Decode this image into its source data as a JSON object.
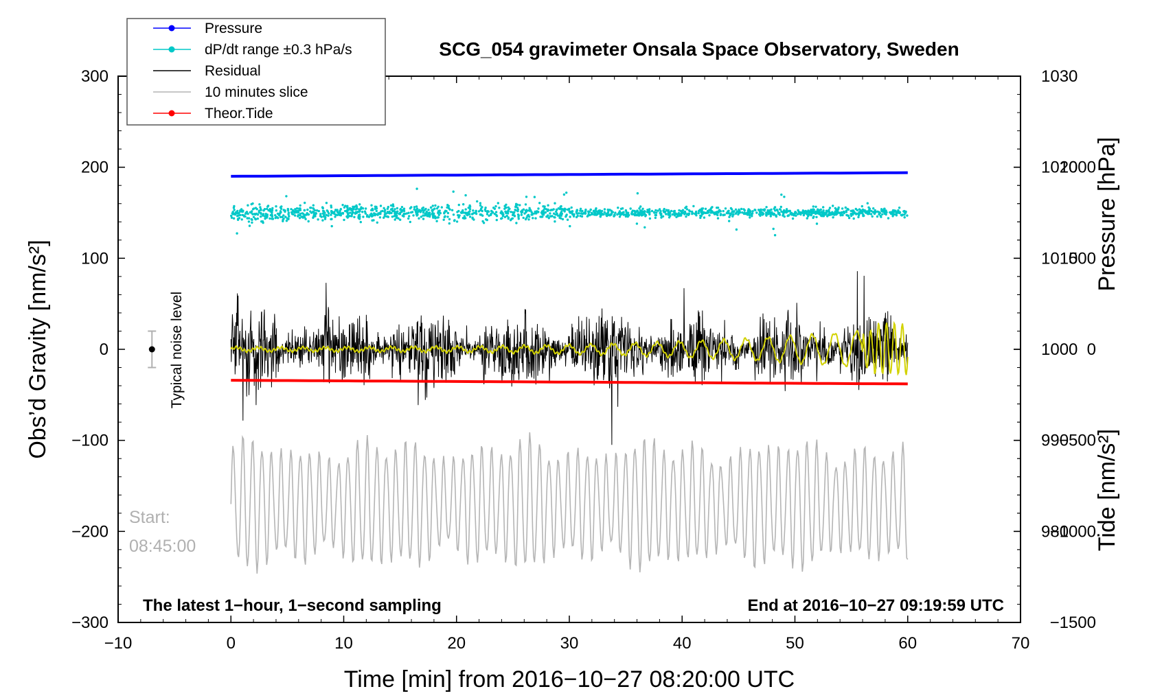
{
  "chart_data": {
    "type": "line",
    "title": "SCG_054 gravimeter Onsala Space Observatory, Sweden",
    "xlabel": "Time [min] from 2016−10−27 08:20:00 UTC",
    "ylabel_left": "Obs’d Gravity [nm/s²]",
    "ylabel_right_pressure": "Pressure [hPa]",
    "ylabel_right_tide": "Tide [nm/s²]",
    "xlim": [
      -10,
      70
    ],
    "ylim": [
      -300,
      300
    ],
    "pressure_axis": {
      "range": [
        970,
        1030
      ],
      "ticks": [
        980,
        990,
        1000,
        1010,
        1020,
        1030
      ]
    },
    "tide_axis": {
      "range": [
        -1500,
        1500
      ],
      "ticks": [
        -1500,
        -1000,
        -500,
        0,
        500,
        1000
      ]
    },
    "x_ticks": [
      "−10",
      "0",
      "10",
      "20",
      "30",
      "40",
      "50",
      "60",
      "70"
    ],
    "x_tick_values": [
      -10,
      0,
      10,
      20,
      30,
      40,
      50,
      60,
      70
    ],
    "y_ticks": [
      "−300",
      "−200",
      "−100",
      "0",
      "100",
      "200",
      "300"
    ],
    "y_tick_values": [
      -300,
      -200,
      -100,
      0,
      100,
      200,
      300
    ],
    "pressure_tick_labels": [
      "980",
      "990",
      "1000",
      "1010",
      "1020",
      "1030"
    ],
    "tide_tick_labels": [
      "−1500",
      "−1000",
      "−500",
      "0",
      "500",
      "1000"
    ],
    "legend": {
      "placement": "top-left",
      "entries": [
        {
          "label": "Pressure",
          "color": "#0000ff",
          "marker": true
        },
        {
          "label": "dP/dt range ±0.3 hPa/s",
          "color": "#00c8c8",
          "marker": true
        },
        {
          "label": "Residual",
          "color": "#000000",
          "marker": false
        },
        {
          "label": "10 minutes slice",
          "color": "#b4b4b4",
          "marker": false
        },
        {
          "label": "Theor.Tide",
          "color": "#ff0000",
          "marker": true
        }
      ]
    },
    "series": [
      {
        "name": "Pressure",
        "color": "#0000ff",
        "axis": "pressure",
        "start_value": 1019.0,
        "end_value": 1019.4,
        "x_range": [
          0,
          60
        ]
      },
      {
        "name": "dP/dt range ±0.3 hPa/s",
        "color": "#00c8c8",
        "axis": "left",
        "center": 150,
        "spread": 12,
        "x_range": [
          0,
          60
        ]
      },
      {
        "name": "Residual",
        "color": "#000000",
        "axis": "left",
        "center": 0,
        "typical_amplitude": 45,
        "max_amplitude": 105,
        "x_range": [
          0,
          60
        ]
      },
      {
        "name": "10 minutes slice",
        "color": "#b4b4b4",
        "axis": "left",
        "center": -170,
        "typical_amplitude": 60,
        "max_amplitude": 85,
        "x_range": [
          0,
          60
        ]
      },
      {
        "name": "Theor.Tide",
        "color": "#ff0000",
        "axis": "tide",
        "start_value": -170,
        "end_value": -190,
        "x_range": [
          0,
          60
        ]
      },
      {
        "name": "",
        "color": "#d2d200",
        "axis": "left",
        "center": 0,
        "note": "filtered residual, amplitude growing to about 30 at end",
        "x_range": [
          0,
          60
        ]
      }
    ],
    "noise_level": {
      "label": "Typical noise level",
      "x": -7,
      "y": 0,
      "error": 20
    },
    "annotations": {
      "start_label": "Start:",
      "start_time": "08:45:00",
      "bottom_left": "The latest 1−hour, 1−second sampling",
      "bottom_right": "End at 2016−10−27 09:19:59 UTC"
    },
    "grid": false
  }
}
